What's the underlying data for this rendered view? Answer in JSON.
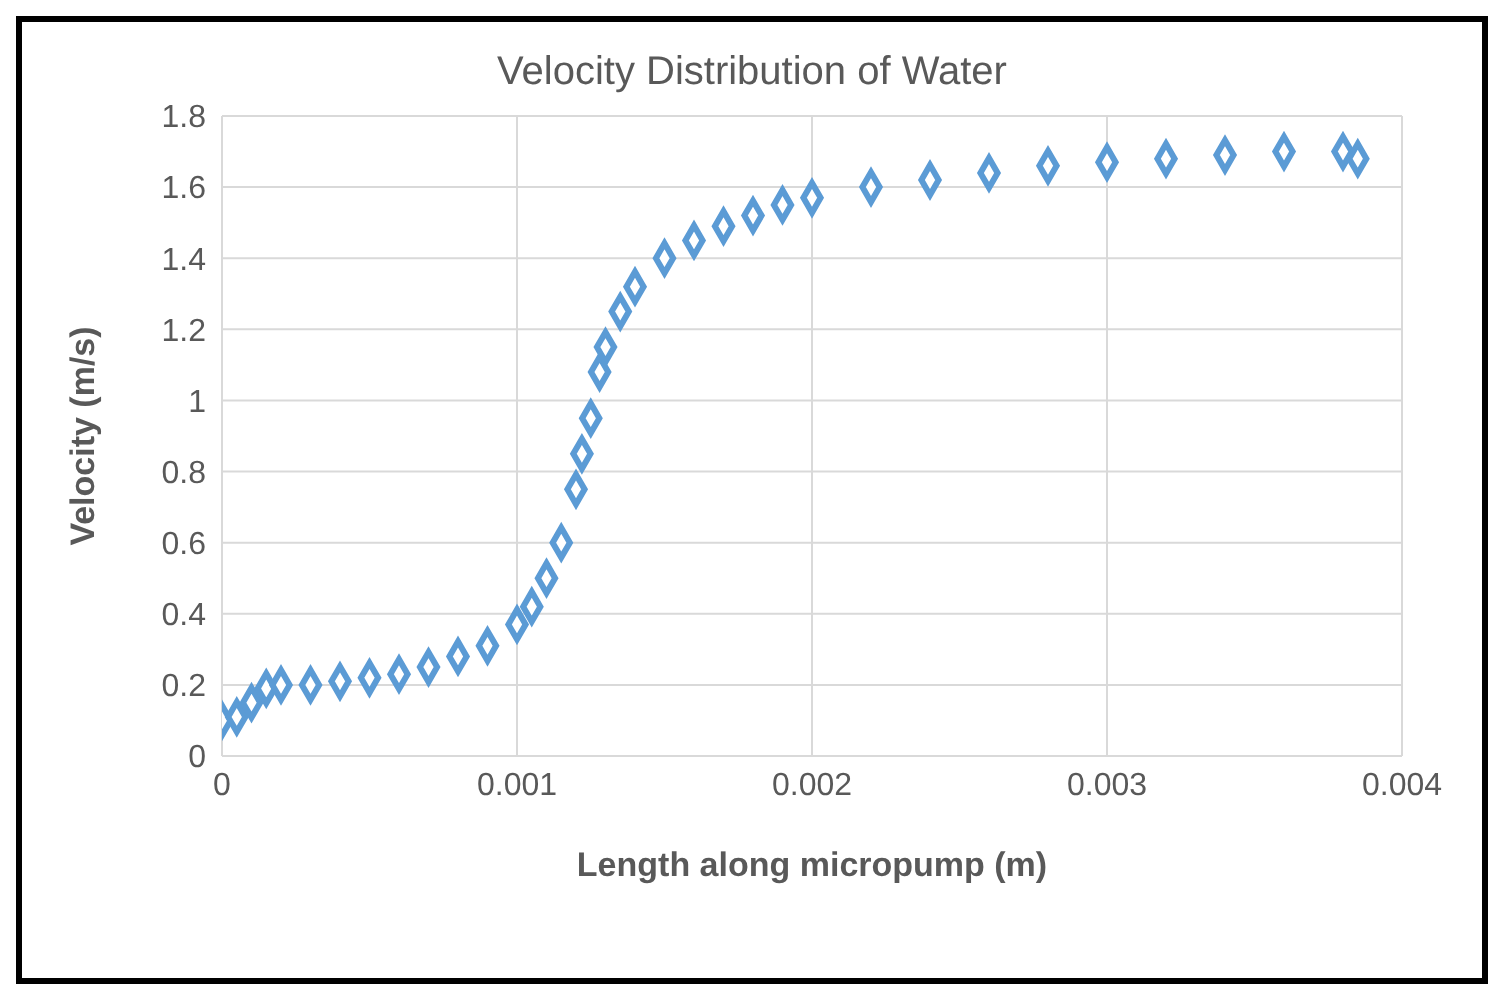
{
  "chart_data": {
    "type": "scatter",
    "title": "Velocity Distribution of Water",
    "xlabel": "Length along micropump (m)",
    "ylabel": "Velocity (m/s)",
    "x": [
      0,
      5e-05,
      0.0001,
      0.00015,
      0.0002,
      0.0003,
      0.0004,
      0.0005,
      0.0006,
      0.0007,
      0.0008,
      0.0009,
      0.001,
      0.00105,
      0.0011,
      0.00115,
      0.0012,
      0.00122,
      0.00125,
      0.00128,
      0.0013,
      0.00135,
      0.0014,
      0.0015,
      0.0016,
      0.0017,
      0.0018,
      0.0019,
      0.002,
      0.0022,
      0.0024,
      0.0026,
      0.0028,
      0.003,
      0.0032,
      0.0034,
      0.0036,
      0.0038,
      0.00385
    ],
    "series": [
      {
        "color": "#5b9bd5",
        "values": [
          0.1,
          0.11,
          0.15,
          0.19,
          0.2,
          0.2,
          0.21,
          0.22,
          0.23,
          0.25,
          0.28,
          0.31,
          0.37,
          0.42,
          0.5,
          0.6,
          0.75,
          0.85,
          0.95,
          1.08,
          1.15,
          1.25,
          1.32,
          1.4,
          1.45,
          1.49,
          1.52,
          1.55,
          1.57,
          1.6,
          1.62,
          1.64,
          1.66,
          1.67,
          1.68,
          1.69,
          1.7,
          1.7,
          1.68
        ]
      }
    ],
    "xlim": [
      0,
      0.004
    ],
    "xticks": [
      0,
      0.001,
      0.002,
      0.003,
      0.004
    ],
    "ylim": [
      0,
      1.8
    ],
    "yticks": [
      0,
      0.2,
      0.4,
      0.6,
      0.8,
      1,
      1.2,
      1.4,
      1.6,
      1.8
    ],
    "grid": true,
    "marker": "diamond",
    "legend": false
  }
}
